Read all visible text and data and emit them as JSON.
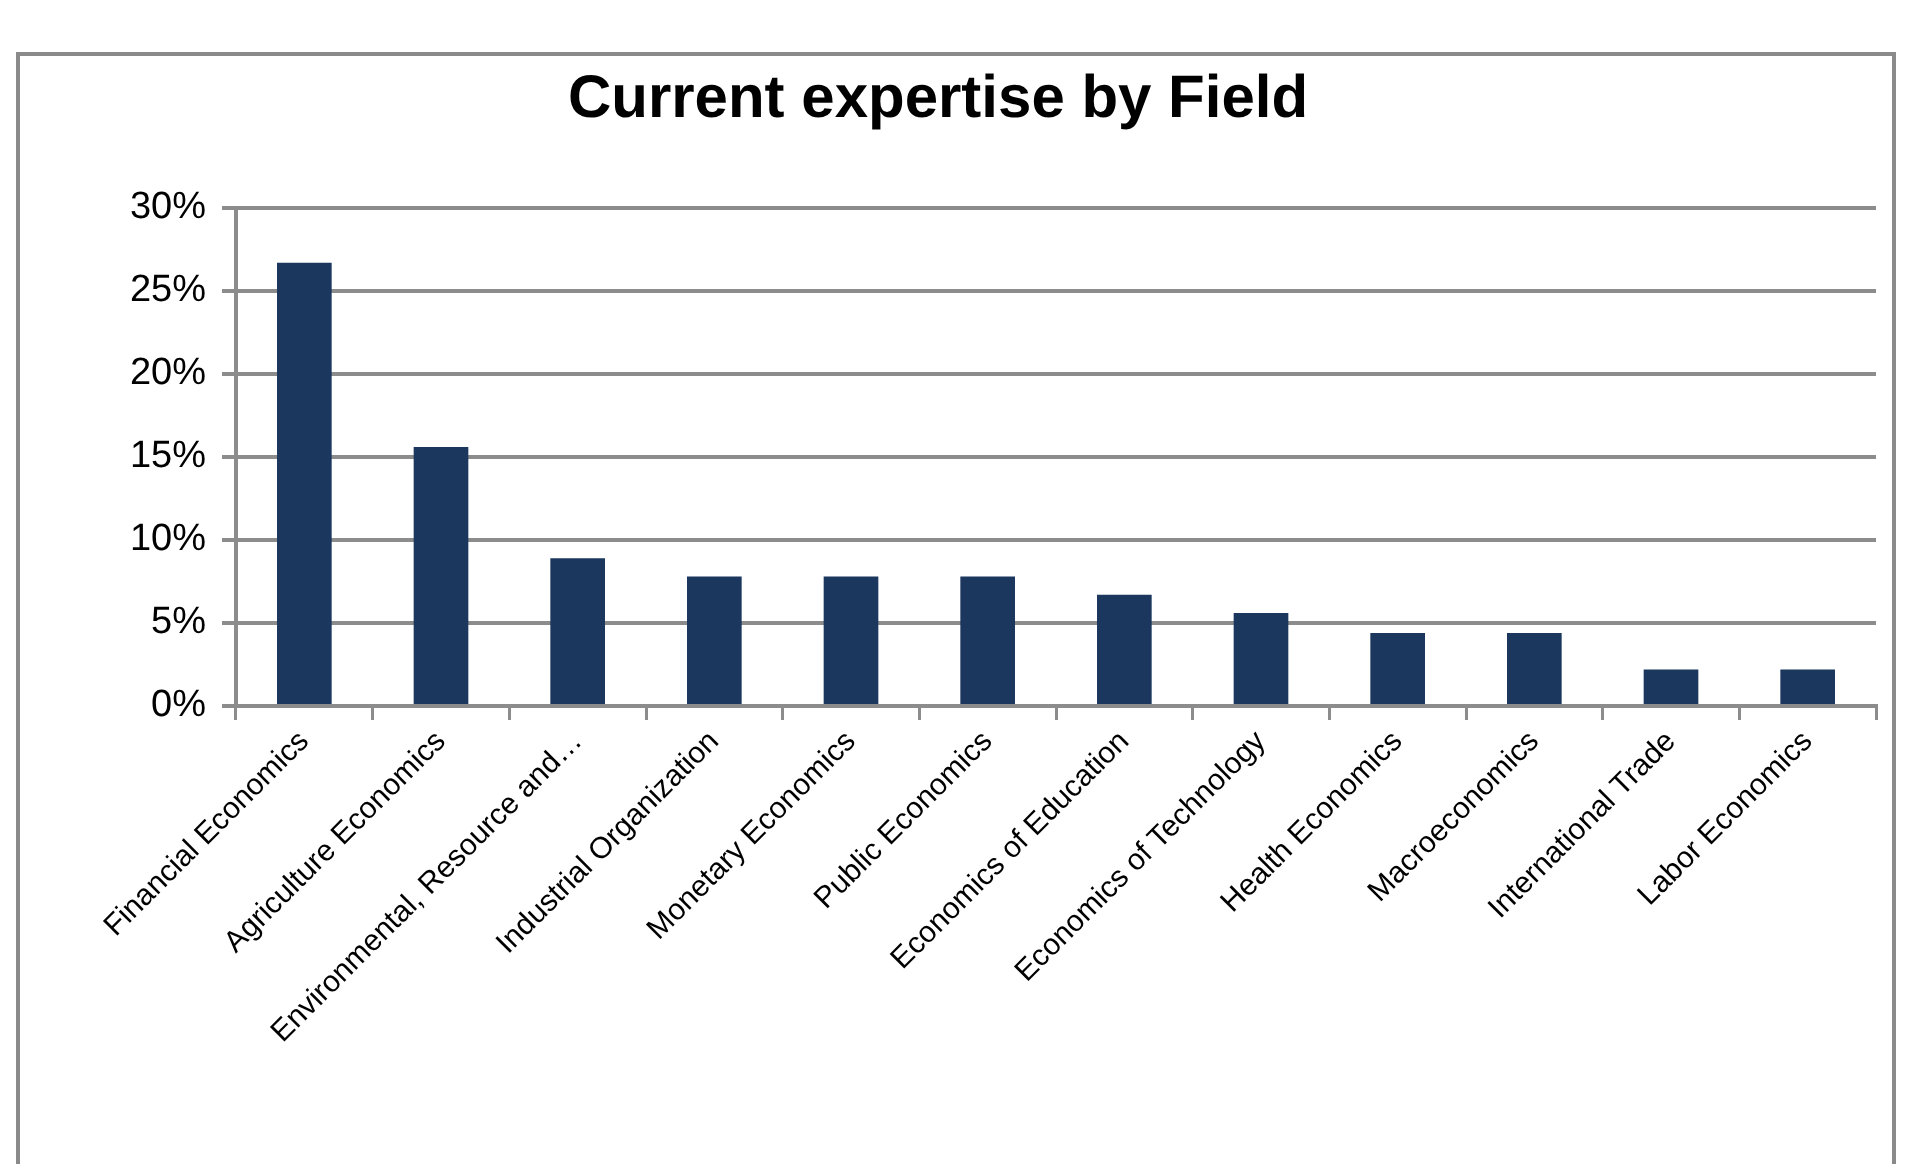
{
  "chart_data": {
    "type": "bar",
    "title": "Current expertise by Field",
    "categories": [
      "Financial Economics",
      "Agriculture Economics",
      "Environmental, Resource and…",
      "Industrial Organization",
      "Monetary Economics",
      "Public Economics",
      "Economics of Education",
      "Economics of Technology",
      "Health Economics",
      "Macroeconomics",
      "International Trade",
      "Labor Economics"
    ],
    "values": [
      26.7,
      15.6,
      8.9,
      7.8,
      7.8,
      7.8,
      6.7,
      5.6,
      4.4,
      4.4,
      2.2,
      2.2
    ],
    "color": "#1b375e",
    "ylim": [
      0,
      30
    ],
    "yticks": [
      {
        "value": 0,
        "label": "0%"
      },
      {
        "value": 5,
        "label": "5%"
      },
      {
        "value": 10,
        "label": "10%"
      },
      {
        "value": 15,
        "label": "15%"
      },
      {
        "value": 20,
        "label": "20%"
      },
      {
        "value": 25,
        "label": "25%"
      },
      {
        "value": 30,
        "label": "30%"
      }
    ],
    "grid": "y"
  }
}
